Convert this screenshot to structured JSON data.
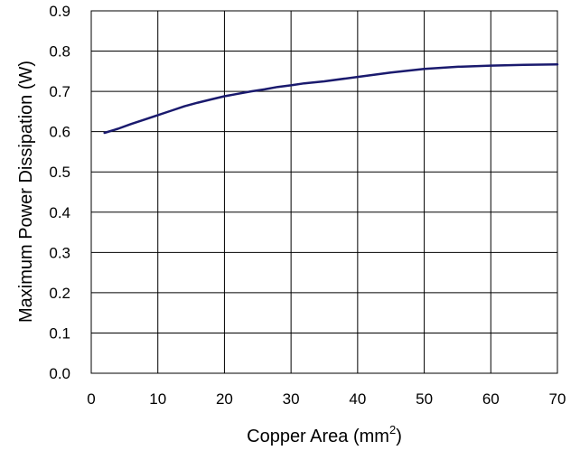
{
  "chart_data": {
    "type": "line",
    "title": "",
    "xlabel_main": "Copper Area (mm",
    "xlabel_sup": "2",
    "xlabel_end": ")",
    "ylabel": "Maximum Power Dissipation (W)",
    "xlim": [
      0,
      70
    ],
    "ylim": [
      0.0,
      0.9
    ],
    "x_ticks": [
      0,
      10,
      20,
      30,
      40,
      50,
      60,
      70
    ],
    "x_tick_labels": [
      "0",
      "10",
      "20",
      "30",
      "40",
      "50",
      "60",
      "70"
    ],
    "y_ticks": [
      0.0,
      0.1,
      0.2,
      0.3,
      0.4,
      0.5,
      0.6,
      0.7,
      0.8,
      0.9
    ],
    "y_tick_labels": [
      "0.0",
      "0.1",
      "0.2",
      "0.3",
      "0.4",
      "0.5",
      "0.6",
      "0.7",
      "0.8",
      "0.9"
    ],
    "grid": true,
    "series": [
      {
        "color": "#1a1a6e",
        "x": [
          2,
          4,
          6,
          8,
          10,
          12,
          14,
          16,
          18,
          20,
          22,
          24,
          26,
          28,
          30,
          32,
          35,
          40,
          45,
          50,
          55,
          60,
          65,
          70
        ],
        "y": [
          0.597,
          0.607,
          0.619,
          0.63,
          0.641,
          0.652,
          0.663,
          0.672,
          0.68,
          0.688,
          0.694,
          0.7,
          0.705,
          0.711,
          0.715,
          0.72,
          0.725,
          0.736,
          0.747,
          0.756,
          0.761,
          0.764,
          0.766,
          0.767
        ]
      }
    ]
  }
}
